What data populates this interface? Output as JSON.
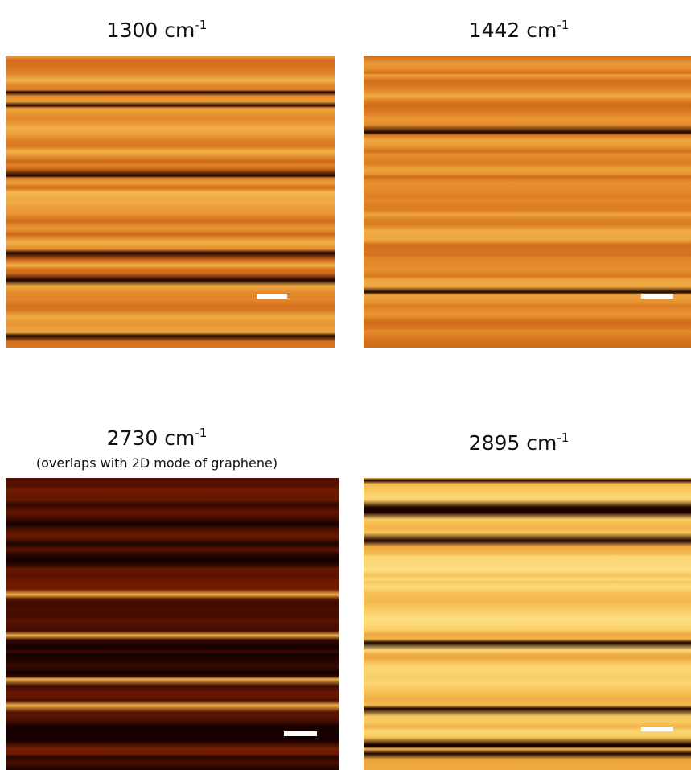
{
  "panels": [
    {
      "title": "1300 cm",
      "superscript": "-1"
    },
    {
      "title": "1442 cm",
      "superscript": "-1"
    },
    {
      "title": "2730 cm",
      "superscript": "-1",
      "subtitle": "(overlaps with 2D mode of graphene)"
    },
    {
      "title": "2895 cm",
      "superscript": "-1"
    }
  ]
}
